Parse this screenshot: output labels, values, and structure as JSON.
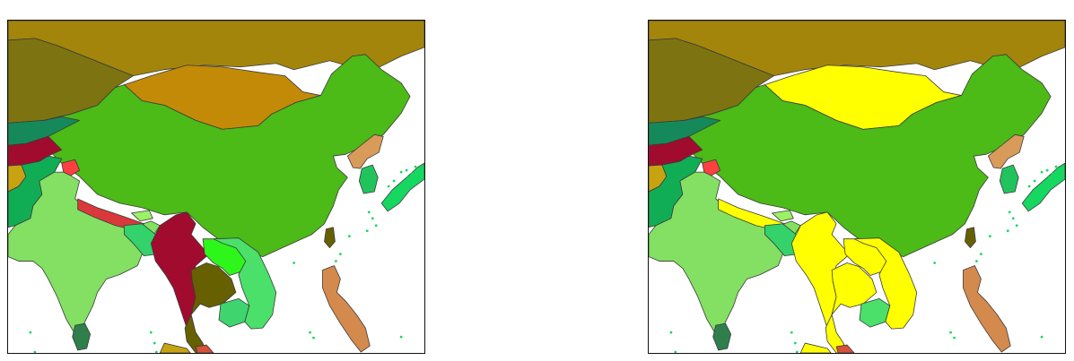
{
  "maps": [
    {
      "name": "left",
      "colors": {
        "russia": "#a3850b",
        "kazakhstan": "#7d7411",
        "mongolia": "#c38a08",
        "china": "#4cba17",
        "kyrgyzstan": "#16895a",
        "afghanistan": "#a10b2d",
        "pakistan": "#11ad54",
        "india": "#83e062",
        "iran": "#c7a312",
        "nepal": "#d9393a",
        "bhutan": "#9cf066",
        "bangladesh": "#33d26a",
        "myanmar": "#a10b2d",
        "thailand": "#666000",
        "laos": "#2ef61a",
        "vietnam": "#4ae06a",
        "cambodia": "#3ed46e",
        "north-korea": "#d99b59",
        "south-korea": "#21c45c",
        "japan": "#16d861",
        "taiwan": "#666000",
        "philippines": "#d48a4d",
        "sri-lanka": "#2f7f4c",
        "kashmir": "#ff4040",
        "malaysia": "#d6503a",
        "indonesia": "#c7a312"
      }
    },
    {
      "name": "right",
      "colors": {
        "russia": "#a3850b",
        "kazakhstan": "#7d7411",
        "mongolia": "#ffff00",
        "china": "#4cba17",
        "kyrgyzstan": "#16895a",
        "afghanistan": "#a10b2d",
        "pakistan": "#11ad54",
        "india": "#83e062",
        "iran": "#c7a312",
        "nepal": "#ffff00",
        "bhutan": "#9cf066",
        "bangladesh": "#33d26a",
        "myanmar": "#ffff00",
        "thailand": "#ffff00",
        "laos": "#ffff00",
        "vietnam": "#ffff00",
        "cambodia": "#4ae06a",
        "north-korea": "#d99b59",
        "south-korea": "#21c45c",
        "japan": "#16d861",
        "taiwan": "#666000",
        "philippines": "#d48a4d",
        "sri-lanka": "#2f7f4c",
        "kashmir": "#ff4040",
        "malaysia": "#d6503a",
        "indonesia": "#ffff00"
      }
    }
  ]
}
